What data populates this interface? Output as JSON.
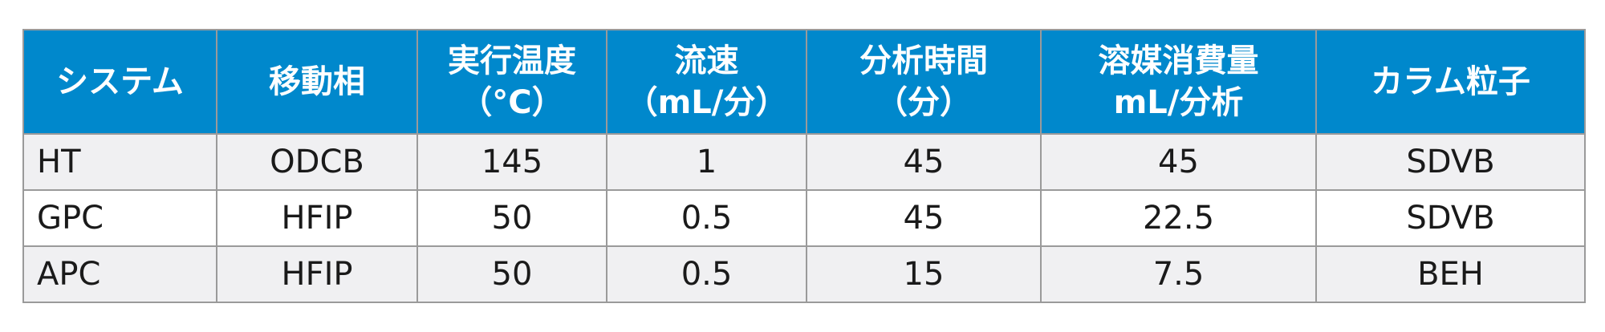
{
  "table": {
    "headers": [
      "システム",
      "移動相",
      "実行温度\n（°C）",
      "流速\n（mL/分）",
      "分析時間\n（分）",
      "溶媒消費量\nmL/分析",
      "カラム粒子"
    ],
    "rows": [
      [
        "HT",
        "ODCB",
        "145",
        "1",
        "45",
        "45",
        "SDVB"
      ],
      [
        "GPC",
        "HFIP",
        "50",
        "0.5",
        "45",
        "22.5",
        "SDVB"
      ],
      [
        "APC",
        "HFIP",
        "50",
        "0.5",
        "15",
        "7.5",
        "BEH"
      ]
    ]
  },
  "colors": {
    "header_bg": "#0088cc",
    "header_text": "#ffffff",
    "row_alt_bg": "#f0f0f2",
    "border": "#9a9a9a"
  }
}
